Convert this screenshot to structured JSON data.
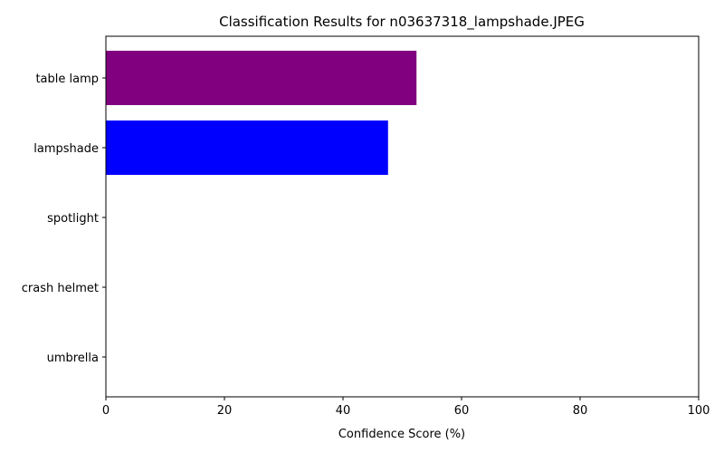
{
  "chart_data": {
    "type": "bar",
    "orientation": "horizontal",
    "title": "Classification Results for n03637318_lampshade.JPEG",
    "xlabel": "Confidence Score (%)",
    "ylabel": "",
    "categories": [
      "table lamp",
      "lampshade",
      "spotlight",
      "crash helmet",
      "umbrella"
    ],
    "values": [
      52.4,
      47.6,
      0,
      0,
      0
    ],
    "colors": [
      "#800080",
      "#0000ff",
      "#800080",
      "#800080",
      "#800080"
    ],
    "xlim": [
      0,
      100
    ],
    "xticks": [
      0,
      20,
      40,
      60,
      80,
      100
    ],
    "grid": false,
    "legend": "none"
  }
}
